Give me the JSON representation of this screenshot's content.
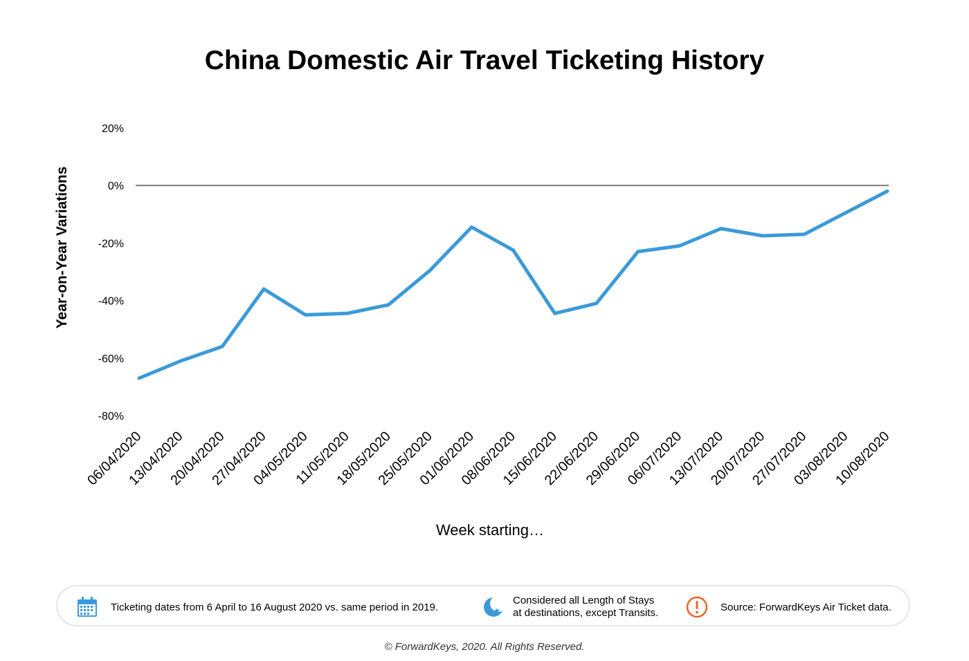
{
  "chart_data": {
    "type": "line",
    "title": "China Domestic Air Travel Ticketing History",
    "xlabel": "Week starting…",
    "ylabel": "Year-on-Year Variations",
    "categories": [
      "06/04/2020",
      "13/04/2020",
      "20/04/2020",
      "27/04/2020",
      "04/05/2020",
      "11/05/2020",
      "18/05/2020",
      "25/05/2020",
      "01/06/2020",
      "08/06/2020",
      "15/06/2020",
      "22/06/2020",
      "29/06/2020",
      "06/07/2020",
      "13/07/2020",
      "20/07/2020",
      "27/07/2020",
      "03/08/2020",
      "10/08/2020"
    ],
    "series": [
      {
        "values": [
          -67,
          -61,
          -56,
          -36,
          -45,
          -44.5,
          -41.5,
          -29.5,
          -14.5,
          -22.5,
          -44.5,
          -41,
          -23,
          -21,
          -15,
          -17.5,
          -17,
          -9.5,
          -2
        ]
      }
    ],
    "yticks": [
      "20%",
      "0%",
      "-20%",
      "-40%",
      "-60%",
      "-80%"
    ],
    "ylim": [
      -80,
      20
    ],
    "grid": false,
    "zero_line": true,
    "colors": {
      "line": "#3a9ad9",
      "zero_line": "#7a7a7a"
    }
  },
  "footer": {
    "items": [
      {
        "icon": "calendar-icon",
        "text": "Ticketing dates from 6 April to 16 August 2020 vs. same period in 2019."
      },
      {
        "icon": "moon-star-icon",
        "line1": "Considered all Length of Stays",
        "line2": "at destinations, except Transits."
      },
      {
        "icon": "exclamation-icon",
        "text": "Source: ForwardKeys Air Ticket data."
      }
    ],
    "copyright": "© ForwardKeys, 2020. All Rights Reserved."
  }
}
